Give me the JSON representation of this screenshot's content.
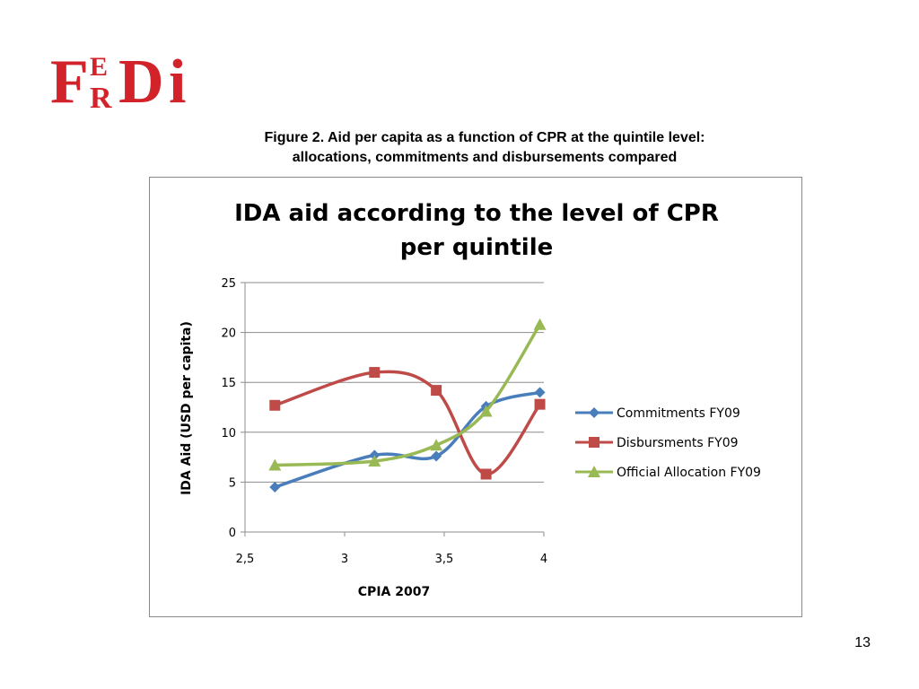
{
  "logo": {
    "text": "FERDI",
    "color": "#d2232a"
  },
  "caption": {
    "line1": "Figure 2. Aid per capita as a function of CPR at the quintile level:",
    "line2": "allocations, commitments and disbursements compared"
  },
  "page_number": "13",
  "chart_data": {
    "type": "line",
    "title_line1": "IDA aid according to the level of CPR",
    "title_line2": "per quintile",
    "xlabel": "CPIA 2007",
    "ylabel": "IDA Aid (USD per capita)",
    "xlim": [
      2.5,
      4
    ],
    "ylim": [
      0,
      25
    ],
    "x_ticks": [
      2.5,
      3,
      3.5,
      4
    ],
    "x_tick_labels": [
      "2,5",
      "3",
      "3,5",
      "4"
    ],
    "y_ticks": [
      0,
      5,
      10,
      15,
      20,
      25
    ],
    "y_tick_labels": [
      "0",
      "5",
      "10",
      "15",
      "20",
      "25"
    ],
    "grid": "horizontal",
    "legend_position": "right",
    "series": [
      {
        "name": "Commitments  FY09",
        "color": "#4a7ebb",
        "marker": "diamond",
        "points": [
          [
            2.65,
            4.5
          ],
          [
            3.15,
            7.7
          ],
          [
            3.46,
            7.6
          ],
          [
            3.71,
            12.6
          ],
          [
            3.98,
            14.0
          ]
        ]
      },
      {
        "name": "Disbursments FY09",
        "color": "#be4b48",
        "marker": "square",
        "points": [
          [
            2.65,
            12.7
          ],
          [
            3.15,
            16.0
          ],
          [
            3.46,
            14.2
          ],
          [
            3.71,
            5.8
          ],
          [
            3.98,
            12.8
          ]
        ]
      },
      {
        "name": "Official Allocation FY09",
        "color": "#98b954",
        "marker": "triangle",
        "points": [
          [
            2.65,
            6.7
          ],
          [
            3.15,
            7.1
          ],
          [
            3.46,
            8.7
          ],
          [
            3.71,
            12.1
          ],
          [
            3.98,
            20.8
          ]
        ]
      }
    ]
  }
}
